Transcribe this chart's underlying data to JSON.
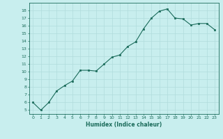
{
  "x": [
    0,
    1,
    2,
    3,
    4,
    5,
    6,
    7,
    8,
    9,
    10,
    11,
    12,
    13,
    14,
    15,
    16,
    17,
    18,
    19,
    20,
    21,
    22,
    23
  ],
  "y": [
    6,
    5,
    6,
    7.5,
    8.2,
    8.8,
    10.2,
    10.2,
    10.1,
    11.0,
    11.9,
    12.2,
    13.3,
    13.9,
    15.6,
    17.0,
    17.9,
    18.2,
    17.0,
    16.9,
    16.1,
    16.3,
    16.3,
    15.5
  ],
  "xlabel": "Humidex (Indice chaleur)",
  "ylim": [
    4.5,
    19.0
  ],
  "xlim": [
    -0.5,
    23.5
  ],
  "yticks": [
    5,
    6,
    7,
    8,
    9,
    10,
    11,
    12,
    13,
    14,
    15,
    16,
    17,
    18
  ],
  "xticks": [
    0,
    1,
    2,
    3,
    4,
    5,
    6,
    7,
    8,
    9,
    10,
    11,
    12,
    13,
    14,
    15,
    16,
    17,
    18,
    19,
    20,
    21,
    22,
    23
  ],
  "line_color": "#1a6b5a",
  "marker_color": "#1a6b5a",
  "bg_color": "#c8eeee",
  "grid_color": "#b0dcdc",
  "text_color": "#1a6b5a",
  "tick_color": "#1a6b5a",
  "axis_color": "#1a6b5a"
}
